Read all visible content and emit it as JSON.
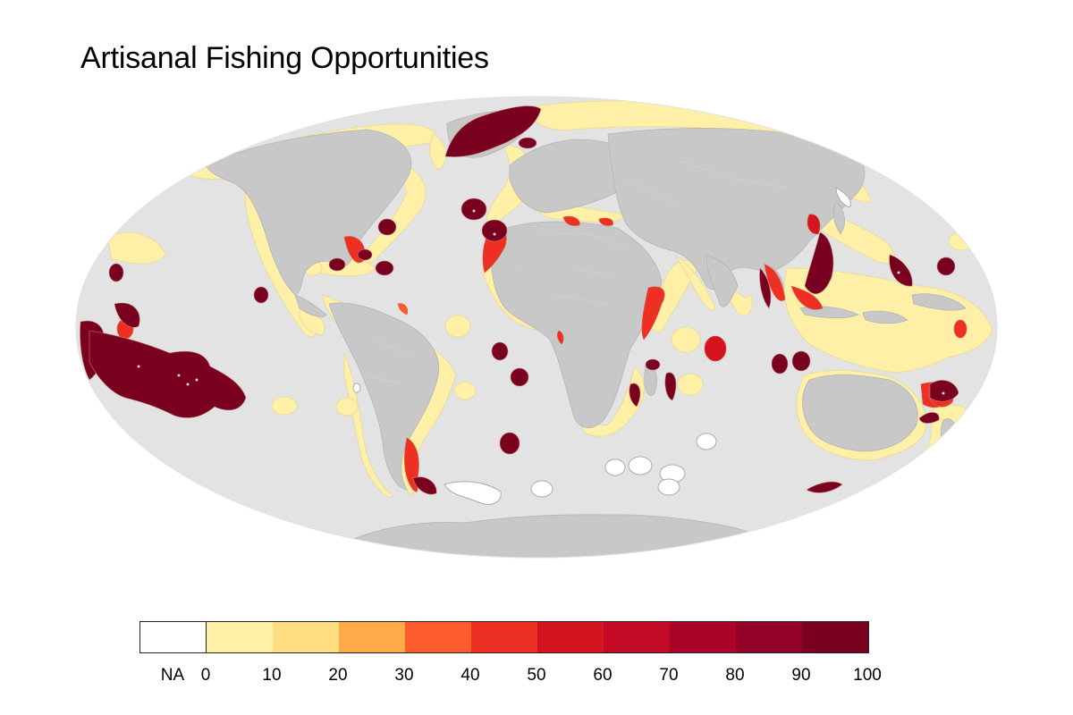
{
  "title": "Artisanal Fishing Opportunities",
  "colors": {
    "ocean": "#e3e3e3",
    "land": "#c8c8c8",
    "land_border": "#b4b4b4",
    "na": "#ffffff",
    "na_border": "#aaaaaa"
  },
  "legend": {
    "na_label": "NA",
    "bins": [
      {
        "range": [
          0,
          10
        ],
        "color": "#fff0a8"
      },
      {
        "range": [
          10,
          20
        ],
        "color": "#fede80"
      },
      {
        "range": [
          20,
          30
        ],
        "color": "#feaa48"
      },
      {
        "range": [
          30,
          40
        ],
        "color": "#fd5c2e"
      },
      {
        "range": [
          40,
          50
        ],
        "color": "#ee3024"
      },
      {
        "range": [
          50,
          60
        ],
        "color": "#d4141e"
      },
      {
        "range": [
          60,
          70
        ],
        "color": "#c20a24"
      },
      {
        "range": [
          70,
          80
        ],
        "color": "#ab0428"
      },
      {
        "range": [
          80,
          90
        ],
        "color": "#930226"
      },
      {
        "range": [
          90,
          100
        ],
        "color": "#7a0020"
      }
    ],
    "ticks": [
      "0",
      "10",
      "20",
      "30",
      "40",
      "50",
      "60",
      "70",
      "80",
      "90",
      "100"
    ]
  }
}
